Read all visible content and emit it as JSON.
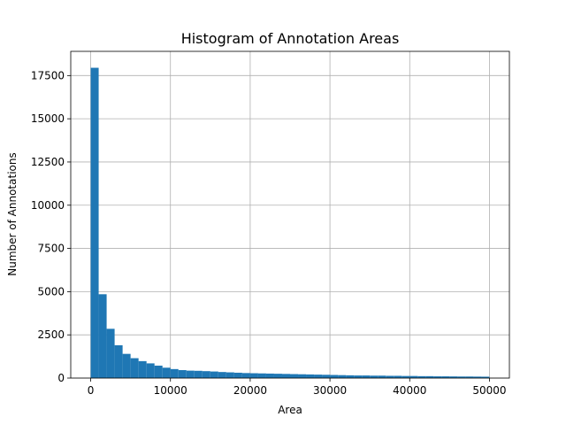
{
  "chart_data": {
    "type": "bar",
    "title": "Histogram of Annotation Areas",
    "xlabel": "Area",
    "ylabel": "Number of Annotations",
    "xlim": [
      -2500,
      52500
    ],
    "ylim": [
      0,
      18900
    ],
    "bin_edges": [
      0,
      1000,
      2000,
      3000,
      4000,
      5000,
      6000,
      7000,
      8000,
      9000,
      10000,
      11000,
      12000,
      13000,
      14000,
      15000,
      16000,
      17000,
      18000,
      19000,
      20000,
      21000,
      22000,
      23000,
      24000,
      25000,
      26000,
      27000,
      28000,
      29000,
      30000,
      31000,
      32000,
      33000,
      34000,
      35000,
      36000,
      37000,
      38000,
      39000,
      40000,
      41000,
      42000,
      43000,
      44000,
      45000,
      46000,
      47000,
      48000,
      49000,
      50000
    ],
    "values": [
      17950,
      4850,
      2850,
      1900,
      1400,
      1150,
      980,
      850,
      720,
      600,
      520,
      460,
      430,
      420,
      400,
      380,
      350,
      330,
      310,
      290,
      280,
      270,
      260,
      250,
      240,
      230,
      220,
      210,
      200,
      190,
      180,
      170,
      160,
      150,
      150,
      140,
      140,
      130,
      130,
      120,
      120,
      110,
      110,
      100,
      100,
      95,
      90,
      90,
      85,
      80
    ],
    "x_ticks": [
      0,
      10000,
      20000,
      30000,
      40000,
      50000
    ],
    "y_ticks": [
      0,
      2500,
      5000,
      7500,
      10000,
      12500,
      15000,
      17500
    ],
    "grid": true,
    "bar_color": "#1f77b4",
    "grid_color": "#b0b0b0"
  }
}
